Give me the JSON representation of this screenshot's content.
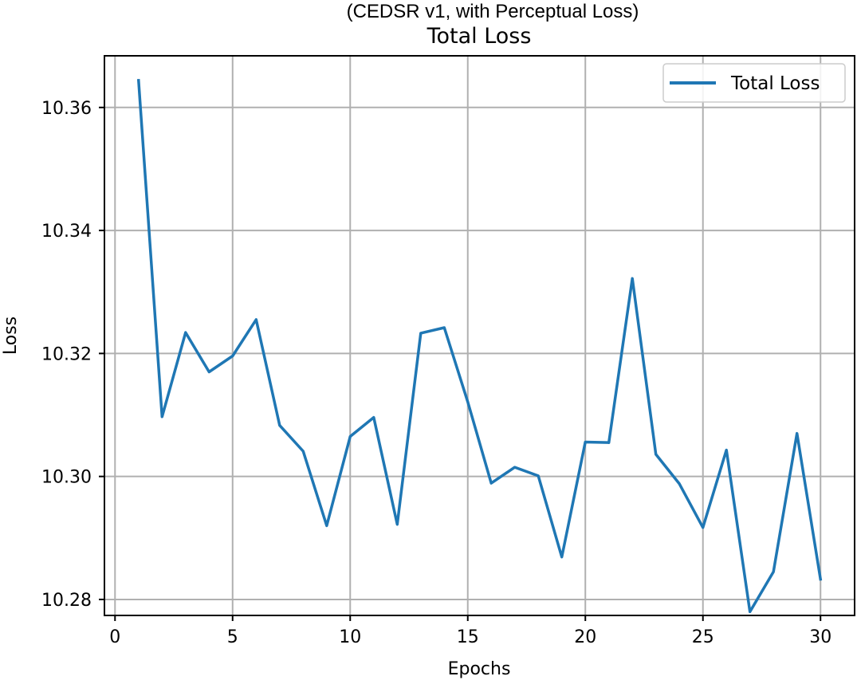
{
  "chart_data": {
    "type": "line",
    "subtitle": "(CEDSR v1, with Perceptual Loss)",
    "title": "Total Loss",
    "xlabel": "Epochs",
    "ylabel": "Loss",
    "xlim": [
      -0.45,
      31.45
    ],
    "ylim": [
      10.2774,
      10.3684
    ],
    "xticks": [
      0,
      5,
      10,
      15,
      20,
      25,
      30
    ],
    "xtick_labels": [
      "0",
      "5",
      "10",
      "15",
      "20",
      "25",
      "30"
    ],
    "yticks": [
      10.28,
      10.3,
      10.32,
      10.34,
      10.36
    ],
    "ytick_labels": [
      "10.28",
      "10.30",
      "10.32",
      "10.34",
      "10.36"
    ],
    "grid": true,
    "legend_position": "upper right",
    "series": [
      {
        "name": "Total Loss",
        "color": "#1f77b4",
        "x": [
          1,
          2,
          3,
          4,
          5,
          6,
          7,
          8,
          9,
          10,
          11,
          12,
          13,
          14,
          15,
          16,
          17,
          18,
          19,
          20,
          21,
          22,
          23,
          24,
          25,
          26,
          27,
          28,
          29,
          30
        ],
        "y": [
          10.3644,
          10.3097,
          10.3234,
          10.317,
          10.3196,
          10.3255,
          10.3083,
          10.3041,
          10.292,
          10.3065,
          10.3096,
          10.2922,
          10.3233,
          10.3242,
          10.3121,
          10.2989,
          10.3015,
          10.3001,
          10.2869,
          10.3056,
          10.3055,
          10.3322,
          10.3036,
          10.2988,
          10.2917,
          10.3043,
          10.278,
          10.2845,
          10.307,
          10.2833
        ]
      }
    ]
  }
}
